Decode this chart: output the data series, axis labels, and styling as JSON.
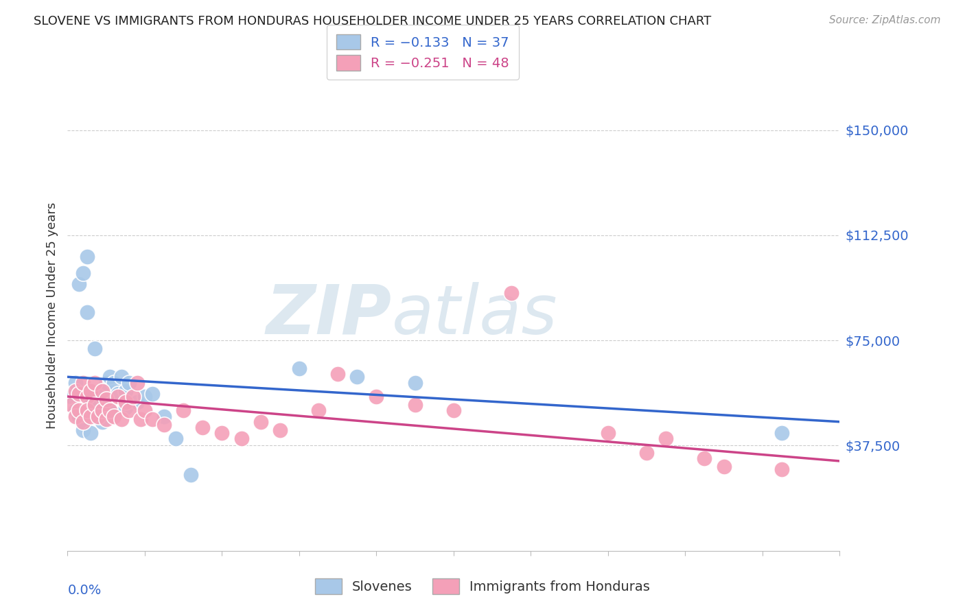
{
  "title": "SLOVENE VS IMMIGRANTS FROM HONDURAS HOUSEHOLDER INCOME UNDER 25 YEARS CORRELATION CHART",
  "source": "Source: ZipAtlas.com",
  "ylabel": "Householder Income Under 25 years",
  "ytick_labels": [
    "$37,500",
    "$75,000",
    "$112,500",
    "$150,000"
  ],
  "ytick_values": [
    37500,
    75000,
    112500,
    150000
  ],
  "ymin": 0,
  "ymax": 168000,
  "xmin": 0.0,
  "xmax": 0.2,
  "blue_color": "#a8c8e8",
  "pink_color": "#f4a0b8",
  "blue_line_color": "#3366cc",
  "pink_line_color": "#cc4488",
  "watermark_text1": "ZIP",
  "watermark_text2": "atlas",
  "watermark_color": "#dde8f0",
  "legend_blue_text": "R = −0.133   N = 37",
  "legend_pink_text": "R = −0.251   N = 48",
  "legend_label_blue": "Slovenes",
  "legend_label_pink": "Immigrants from Honduras",
  "blue_R": -0.133,
  "blue_N": 37,
  "pink_R": -0.251,
  "pink_N": 48,
  "blue_intercept": 62000,
  "blue_slope": -80000,
  "pink_intercept": 55000,
  "pink_slope": -115000,
  "blue_scatter_x": [
    0.001,
    0.002,
    0.002,
    0.003,
    0.003,
    0.004,
    0.004,
    0.005,
    0.005,
    0.006,
    0.006,
    0.007,
    0.007,
    0.008,
    0.008,
    0.009,
    0.009,
    0.01,
    0.01,
    0.011,
    0.011,
    0.012,
    0.013,
    0.014,
    0.015,
    0.015,
    0.016,
    0.018,
    0.02,
    0.022,
    0.025,
    0.028,
    0.032,
    0.06,
    0.075,
    0.09,
    0.185
  ],
  "blue_scatter_y": [
    55000,
    60000,
    50000,
    95000,
    48000,
    99000,
    43000,
    85000,
    105000,
    54000,
    42000,
    72000,
    50000,
    52000,
    48000,
    55000,
    46000,
    60000,
    50000,
    62000,
    50000,
    60000,
    56000,
    62000,
    57000,
    51000,
    60000,
    53000,
    55000,
    56000,
    48000,
    40000,
    27000,
    65000,
    62000,
    60000,
    42000
  ],
  "pink_scatter_x": [
    0.001,
    0.002,
    0.002,
    0.003,
    0.003,
    0.004,
    0.004,
    0.005,
    0.005,
    0.006,
    0.006,
    0.007,
    0.007,
    0.008,
    0.009,
    0.009,
    0.01,
    0.01,
    0.011,
    0.012,
    0.013,
    0.014,
    0.015,
    0.016,
    0.017,
    0.018,
    0.019,
    0.02,
    0.022,
    0.025,
    0.03,
    0.035,
    0.04,
    0.045,
    0.05,
    0.055,
    0.065,
    0.07,
    0.08,
    0.09,
    0.1,
    0.115,
    0.14,
    0.15,
    0.155,
    0.165,
    0.17,
    0.185
  ],
  "pink_scatter_y": [
    52000,
    57000,
    48000,
    56000,
    50000,
    60000,
    46000,
    55000,
    50000,
    57000,
    48000,
    60000,
    52000,
    48000,
    57000,
    50000,
    54000,
    47000,
    50000,
    48000,
    55000,
    47000,
    53000,
    50000,
    55000,
    60000,
    47000,
    50000,
    47000,
    45000,
    50000,
    44000,
    42000,
    40000,
    46000,
    43000,
    50000,
    63000,
    55000,
    52000,
    50000,
    92000,
    42000,
    35000,
    40000,
    33000,
    30000,
    29000
  ]
}
